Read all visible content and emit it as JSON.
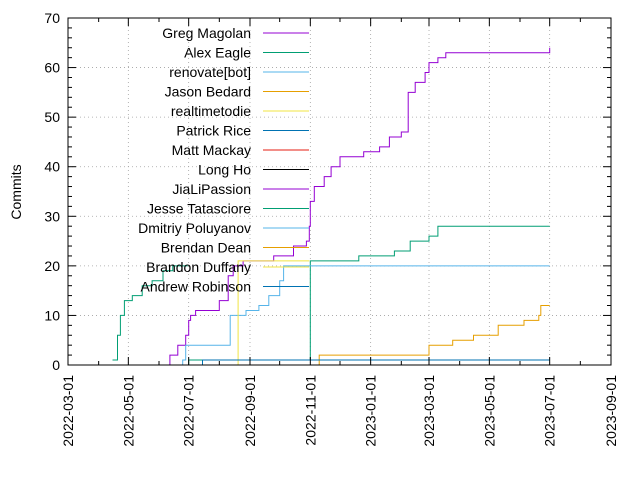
{
  "chart_data": {
    "type": "line",
    "ylabel": "Commits",
    "xlabel": "",
    "ylim": [
      0,
      70
    ],
    "xlim": [
      "2022-03-01",
      "2023-09-01"
    ],
    "x_ticks": [
      "2022-03-01",
      "2022-05-01",
      "2022-07-01",
      "2022-09-01",
      "2022-11-01",
      "2023-01-01",
      "2023-03-01",
      "2023-05-01",
      "2023-07-01",
      "2023-09-01"
    ],
    "y_ticks": [
      0,
      10,
      20,
      30,
      40,
      50,
      60,
      70
    ],
    "grid": "dotted horizontal and vertical",
    "legend_position": "top-left",
    "series": [
      {
        "name": "Greg Magolan",
        "color": "#9400d3",
        "points": [
          [
            "2022-06-10",
            0
          ],
          [
            "2022-06-12",
            2
          ],
          [
            "2022-06-20",
            4
          ],
          [
            "2022-06-28",
            6
          ],
          [
            "2022-07-01",
            9
          ],
          [
            "2022-07-03",
            10
          ],
          [
            "2022-07-08",
            11
          ],
          [
            "2022-07-25",
            11
          ],
          [
            "2022-08-01",
            13
          ],
          [
            "2022-08-10",
            18
          ],
          [
            "2022-08-15",
            20
          ],
          [
            "2022-08-25",
            21
          ],
          [
            "2022-09-01",
            21
          ],
          [
            "2022-09-25",
            22
          ],
          [
            "2022-10-15",
            24
          ],
          [
            "2022-10-28",
            25
          ],
          [
            "2022-10-31",
            28
          ],
          [
            "2022-11-01",
            33
          ],
          [
            "2022-11-05",
            36
          ],
          [
            "2022-11-15",
            38
          ],
          [
            "2022-11-22",
            40
          ],
          [
            "2022-12-01",
            42
          ],
          [
            "2022-12-25",
            43
          ],
          [
            "2023-01-10",
            44
          ],
          [
            "2023-01-20",
            46
          ],
          [
            "2023-02-01",
            47
          ],
          [
            "2023-02-08",
            55
          ],
          [
            "2023-02-15",
            57
          ],
          [
            "2023-02-25",
            59
          ],
          [
            "2023-03-01",
            61
          ],
          [
            "2023-03-10",
            62
          ],
          [
            "2023-03-18",
            63
          ],
          [
            "2023-06-15",
            63
          ],
          [
            "2023-07-01",
            64
          ]
        ]
      },
      {
        "name": "Alex Eagle",
        "color": "#009e73",
        "points": [
          [
            "2022-06-25",
            0
          ],
          [
            "2022-07-01",
            1
          ],
          [
            "2022-10-30",
            1
          ],
          [
            "2022-11-01",
            21
          ],
          [
            "2022-12-01",
            21
          ],
          [
            "2022-12-20",
            22
          ],
          [
            "2023-01-25",
            23
          ],
          [
            "2023-02-10",
            25
          ],
          [
            "2023-03-01",
            26
          ],
          [
            "2023-03-10",
            28
          ],
          [
            "2023-07-01",
            28
          ]
        ]
      },
      {
        "name": "renovate[bot]",
        "color": "#56b4e9",
        "points": [
          [
            "2022-06-20",
            0
          ],
          [
            "2022-06-25",
            1
          ],
          [
            "2022-06-28",
            4
          ],
          [
            "2022-08-10",
            4
          ],
          [
            "2022-08-12",
            10
          ],
          [
            "2022-08-28",
            11
          ],
          [
            "2022-09-10",
            12
          ],
          [
            "2022-09-20",
            14
          ],
          [
            "2022-10-01",
            17
          ],
          [
            "2022-10-05",
            20
          ],
          [
            "2023-07-01",
            20
          ]
        ]
      },
      {
        "name": "Jason Bedard",
        "color": "#e69f00",
        "points": [
          [
            "2022-11-01",
            0
          ],
          [
            "2022-11-10",
            2
          ],
          [
            "2023-02-25",
            2
          ],
          [
            "2023-03-01",
            4
          ],
          [
            "2023-03-25",
            5
          ],
          [
            "2023-04-15",
            6
          ],
          [
            "2023-05-10",
            8
          ],
          [
            "2023-06-05",
            9
          ],
          [
            "2023-06-20",
            10
          ],
          [
            "2023-06-22",
            12
          ],
          [
            "2023-07-01",
            12
          ]
        ]
      },
      {
        "name": "realtimetodie",
        "color": "#f0e442",
        "points": [
          [
            "2022-08-15",
            0
          ],
          [
            "2022-08-20",
            21
          ],
          [
            "2022-10-31",
            21
          ]
        ]
      },
      {
        "name": "Patrick Rice",
        "color": "#0072b2",
        "points": [
          [
            "2022-07-10",
            0
          ],
          [
            "2022-07-15",
            1
          ],
          [
            "2023-07-01",
            1
          ]
        ]
      },
      {
        "name": "Matt Mackay",
        "color": "#e51e10",
        "points": []
      },
      {
        "name": "Long Ho",
        "color": "#000000",
        "points": []
      },
      {
        "name": "JiaLiPassion",
        "color": "#9400d3",
        "points": []
      },
      {
        "name": "Jesse Tatasciore",
        "color": "#009e73",
        "points": [
          [
            "2022-04-15",
            1
          ],
          [
            "2022-04-20",
            6
          ],
          [
            "2022-04-23",
            10
          ],
          [
            "2022-04-27",
            13
          ],
          [
            "2022-05-05",
            14
          ],
          [
            "2022-05-15",
            16
          ],
          [
            "2022-05-25",
            17
          ],
          [
            "2022-06-05",
            19
          ],
          [
            "2022-06-15",
            20
          ],
          [
            "2022-06-30",
            20
          ]
        ]
      },
      {
        "name": "Dmitriy Poluyanov",
        "color": "#56b4e9",
        "points": []
      },
      {
        "name": "Brendan Dean",
        "color": "#e69f00",
        "points": []
      },
      {
        "name": "Brandon Duffany",
        "color": "#f0e442",
        "points": []
      },
      {
        "name": "Andrew Robinson",
        "color": "#0072b2",
        "points": []
      }
    ]
  }
}
